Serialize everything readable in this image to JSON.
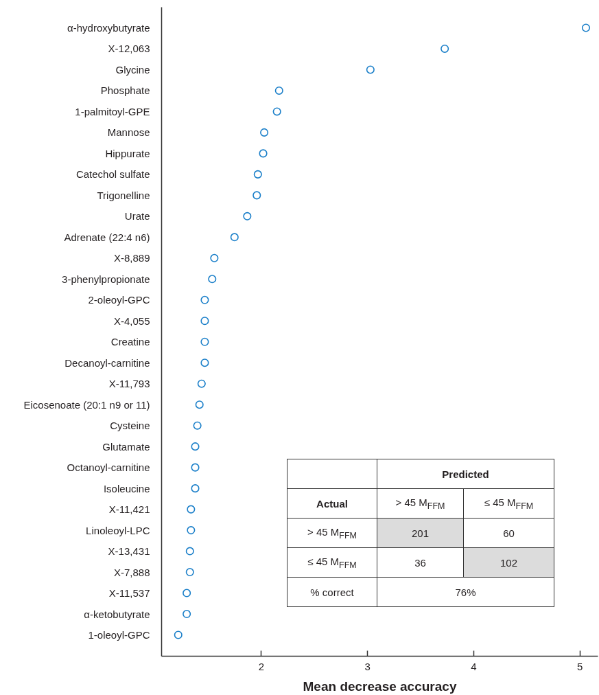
{
  "chart_data": {
    "type": "scatter",
    "xlabel": "Mean decrease accuracy",
    "categories": [
      "α-hydroxybutyrate",
      "X-12,063",
      "Glycine",
      "Phosphate",
      "1-palmitoyl-GPE",
      "Mannose",
      "Hippurate",
      "Catechol sulfate",
      "Trigonelline",
      "Urate",
      "Adrenate (22:4 n6)",
      "X-8,889",
      "3-phenylpropionate",
      "2-oleoyl-GPC",
      "X-4,055",
      "Creatine",
      "Decanoyl-carnitine",
      "X-11,793",
      "Eicosenoate (20:1 n9 or 11)",
      "Cysteine",
      "Glutamate",
      "Octanoyl-carnitine",
      "Isoleucine",
      "X-11,421",
      "Linoleoyl-LPC",
      "X-13,431",
      "X-7,888",
      "X-11,537",
      "α-ketobutyrate",
      "1-oleoyl-GPC"
    ],
    "values": [
      5.06,
      3.73,
      3.03,
      2.17,
      2.15,
      2.03,
      2.02,
      1.97,
      1.96,
      1.87,
      1.75,
      1.56,
      1.54,
      1.47,
      1.47,
      1.47,
      1.47,
      1.44,
      1.42,
      1.4,
      1.38,
      1.38,
      1.38,
      1.34,
      1.34,
      1.33,
      1.33,
      1.3,
      1.3,
      1.22
    ],
    "color": "#1a7fc9",
    "marker": "circle",
    "xlim": [
      1.06,
      5.17
    ],
    "xticks": [
      2,
      3,
      4,
      5
    ],
    "orientation": "horizontal",
    "annotations": [
      "Predicted",
      "Actual",
      "> 45 M$_{FFM}$",
      "≤ 45 M$_{FFM}$",
      "> 45 M$_{FFM}$",
      "201",
      "60",
      "≤ 45 M$_{FFM}$",
      "36",
      "102",
      "% correct",
      "76%"
    ]
  }
}
